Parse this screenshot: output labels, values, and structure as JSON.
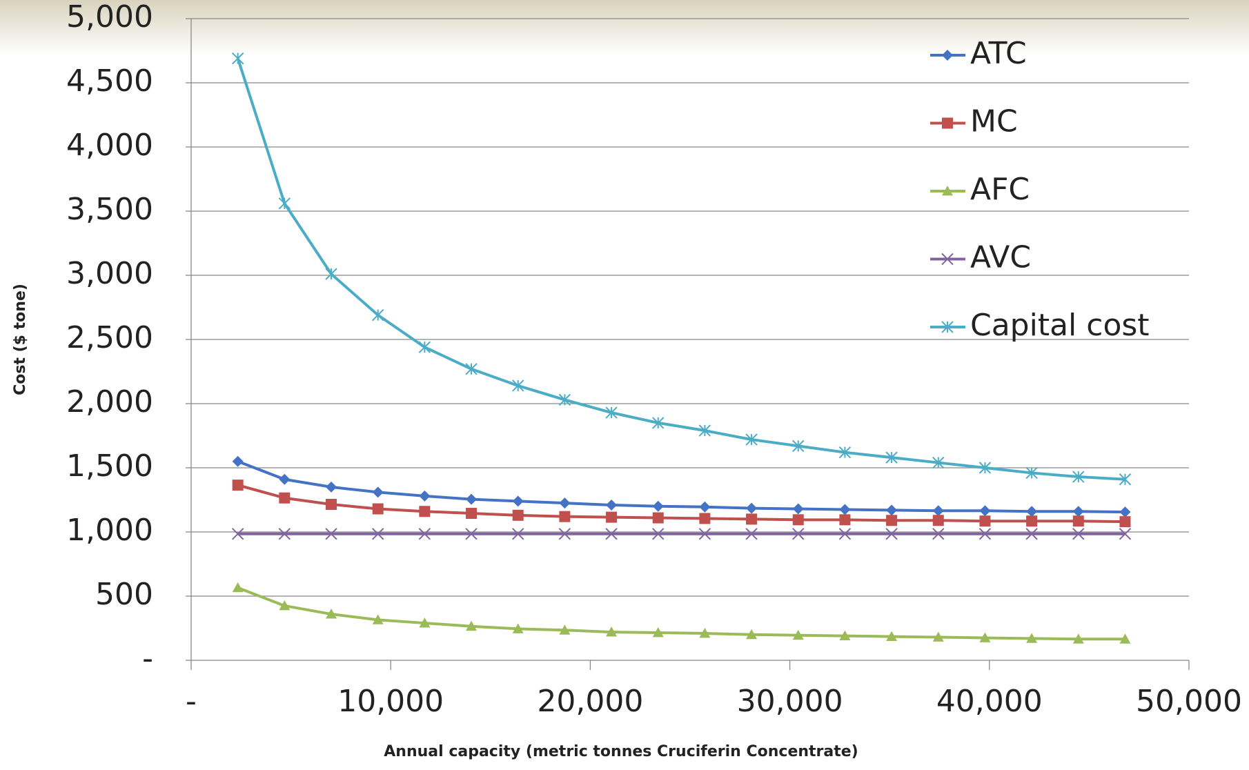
{
  "chart_data": {
    "type": "line",
    "y_label": "Cost ($ tone)",
    "x_label": "Annual capacity (metric tonnes Cruciferin Concentrate)",
    "x": [
      2340,
      4680,
      7020,
      9360,
      11700,
      14040,
      16380,
      18720,
      21060,
      23400,
      25740,
      28080,
      30420,
      32760,
      35100,
      37440,
      39780,
      42120,
      44460,
      46800
    ],
    "series": [
      {
        "name": "ATC",
        "color": "#4472c4",
        "marker": "diamond",
        "values": [
          1550,
          1410,
          1350,
          1310,
          1280,
          1255,
          1240,
          1225,
          1210,
          1200,
          1195,
          1185,
          1180,
          1175,
          1170,
          1165,
          1165,
          1160,
          1160,
          1155
        ]
      },
      {
        "name": "MC",
        "color": "#c0504d",
        "marker": "square",
        "values": [
          1365,
          1265,
          1215,
          1180,
          1160,
          1145,
          1130,
          1120,
          1115,
          1110,
          1105,
          1100,
          1095,
          1095,
          1090,
          1090,
          1085,
          1085,
          1085,
          1080
        ]
      },
      {
        "name": "AFC",
        "color": "#9bbb59",
        "marker": "triangle",
        "values": [
          565,
          425,
          360,
          315,
          290,
          265,
          245,
          235,
          220,
          215,
          210,
          200,
          195,
          190,
          185,
          180,
          175,
          170,
          165,
          165
        ]
      },
      {
        "name": "AVC",
        "color": "#8064a2",
        "marker": "x",
        "values": [
          985,
          985,
          985,
          985,
          985,
          985,
          985,
          985,
          985,
          985,
          985,
          985,
          985,
          985,
          985,
          985,
          985,
          985,
          985,
          985
        ]
      },
      {
        "name": "Capital cost",
        "color": "#4bacc6",
        "marker": "star",
        "values": [
          4690,
          3560,
          3010,
          2690,
          2440,
          2270,
          2140,
          2030,
          1930,
          1850,
          1790,
          1720,
          1670,
          1620,
          1580,
          1540,
          1500,
          1460,
          1430,
          1410
        ]
      }
    ],
    "xlim": [
      0,
      50000
    ],
    "xticks": [
      {
        "value": 0,
        "label": "-"
      },
      {
        "value": 10000,
        "label": "10,000"
      },
      {
        "value": 20000,
        "label": "20,000"
      },
      {
        "value": 30000,
        "label": "30,000"
      },
      {
        "value": 40000,
        "label": "40,000"
      },
      {
        "value": 50000,
        "label": "50,000"
      }
    ],
    "ylim": [
      0,
      5000
    ],
    "yticks": [
      {
        "value": 0,
        "label": "-"
      },
      500,
      {
        "value": 1000,
        "label": "1,000"
      },
      {
        "value": 1500,
        "label": "1,500"
      },
      {
        "value": 2000,
        "label": "2,000"
      },
      {
        "value": 2500,
        "label": "2,500"
      },
      {
        "value": 3000,
        "label": "3,000"
      },
      {
        "value": 3500,
        "label": "3,500"
      },
      {
        "value": 4000,
        "label": "4,000"
      },
      {
        "value": 4500,
        "label": "4,500"
      },
      {
        "value": 5000,
        "label": "5,000"
      }
    ],
    "grid": true,
    "legend": "top-right"
  }
}
